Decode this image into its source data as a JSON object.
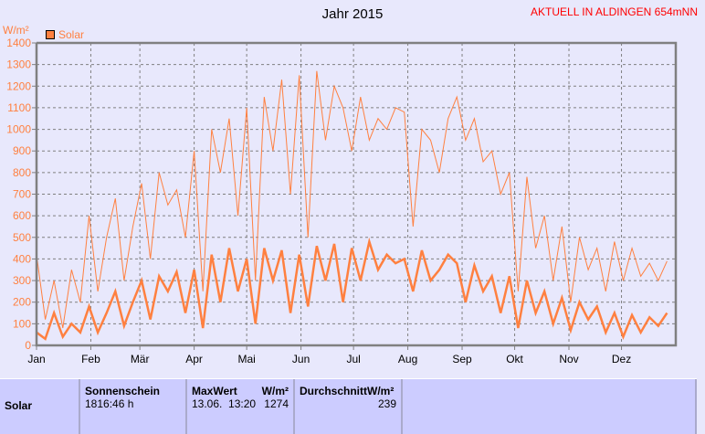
{
  "header": {
    "station": "AKTUELL IN ALDINGEN 654mNN"
  },
  "chart_data": {
    "type": "line",
    "title": "Jahr 2015",
    "ylabel": "W/m²",
    "ylim": [
      0,
      1400
    ],
    "yticks": [
      0,
      100,
      200,
      300,
      400,
      500,
      600,
      700,
      800,
      900,
      1000,
      1100,
      1200,
      1300,
      1400
    ],
    "xticks": [
      "Jan",
      "Feb",
      "Mär",
      "Apr",
      "Mai",
      "Jun",
      "Jul",
      "Aug",
      "Sep",
      "Okt",
      "Nov",
      "Dez"
    ],
    "legend": {
      "label": "Solar",
      "position": "top-left"
    },
    "grid": true,
    "color": "#ff8040",
    "x_step_days": 5,
    "series": [
      {
        "name": "max",
        "values": [
          420,
          120,
          300,
          80,
          350,
          200,
          600,
          250,
          500,
          680,
          300,
          550,
          750,
          400,
          800,
          650,
          720,
          500,
          900,
          250,
          1000,
          800,
          1050,
          600,
          1100,
          300,
          1150,
          900,
          1230,
          700,
          1250,
          500,
          1270,
          950,
          1200,
          1100,
          900,
          1150,
          950,
          1050,
          1000,
          1100,
          1080,
          550,
          1000,
          950,
          800,
          1050,
          1150,
          950,
          1050,
          850,
          900,
          700,
          800,
          250,
          780,
          450,
          600,
          300,
          550,
          200,
          500,
          350,
          450,
          250,
          480,
          300,
          450,
          320,
          380,
          300,
          390
        ]
      },
      {
        "name": "avg",
        "values": [
          60,
          30,
          150,
          40,
          100,
          60,
          180,
          60,
          150,
          250,
          90,
          200,
          300,
          120,
          320,
          250,
          340,
          150,
          350,
          80,
          420,
          200,
          450,
          250,
          400,
          100,
          450,
          300,
          440,
          150,
          420,
          180,
          460,
          300,
          470,
          200,
          450,
          300,
          480,
          350,
          420,
          380,
          400,
          250,
          440,
          300,
          350,
          420,
          380,
          200,
          370,
          250,
          320,
          150,
          320,
          80,
          300,
          150,
          250,
          100,
          220,
          70,
          200,
          120,
          180,
          60,
          150,
          40,
          140,
          60,
          130,
          90,
          150
        ]
      }
    ]
  },
  "table": {
    "row_label": "Solar",
    "sun_label": "Sonnenschein",
    "sun_value": "1816:46 h",
    "max_label": "MaxWert",
    "max_unit": "W/m²",
    "max_date": "13.06.  13:20",
    "max_value": "1274",
    "avg_label": "Durchschnitt",
    "avg_unit": "W/m²",
    "avg_value": "239"
  }
}
